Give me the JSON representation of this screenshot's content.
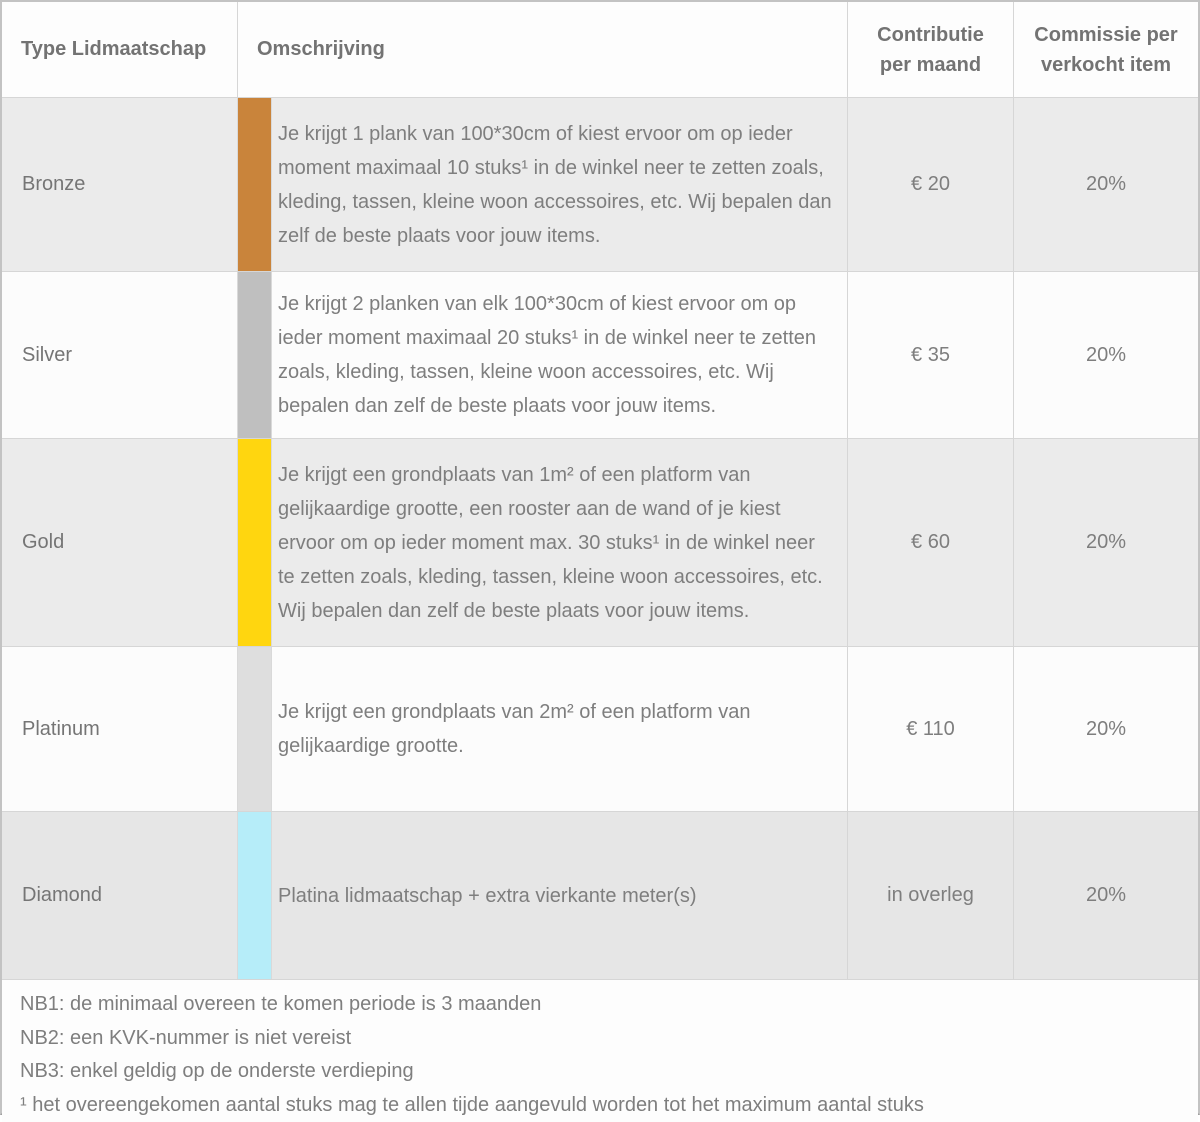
{
  "table": {
    "headers": {
      "type": "Type Lidmaatschap",
      "description": "Omschrijving",
      "contribution": "Contributie per maand",
      "commission": "Commissie per verkocht item"
    },
    "rows": [
      {
        "name": "Bronze",
        "tier_color": "#c9843b",
        "description": "Je krijgt 1 plank van 100*30cm of kiest ervoor om op ieder moment maximaal 10 stuks¹ in de winkel neer te zetten zoals, kleding, tassen, kleine woon accessoires, etc. Wij bepalen dan zelf de beste plaats voor jouw items.",
        "contribution": "€ 20",
        "commission": "20%"
      },
      {
        "name": "Silver",
        "tier_color": "#bfbfbf",
        "description": "Je krijgt 2 planken van elk 100*30cm of kiest ervoor om op ieder moment maximaal 20 stuks¹ in de winkel neer te zetten zoals, kleding, tassen, kleine woon accessoires, etc. Wij bepalen dan zelf de beste plaats voor jouw items.",
        "contribution": "€ 35",
        "commission": "20%"
      },
      {
        "name": "Gold",
        "tier_color": "#ffd60f",
        "description": "Je krijgt een grondplaats van 1m² of een platform van gelijkaardige grootte, een rooster aan de wand of je kiest ervoor om op ieder moment max. 30 stuks¹ in de winkel neer te zetten zoals, kleding, tassen, kleine woon accessoires, etc. Wij bepalen dan zelf de beste plaats voor jouw items.",
        "contribution": "€ 60",
        "commission": "20%"
      },
      {
        "name": "Platinum",
        "tier_color": "#dedede",
        "description": "Je krijgt een grondplaats van 2m² of een platform van gelijkaardige grootte.",
        "contribution": "€ 110",
        "commission": "20%"
      },
      {
        "name": "Diamond",
        "tier_color": "#b6edf9",
        "description": "Platina lidmaatschap + extra vierkante meter(s)",
        "contribution": "in overleg",
        "commission": "20%"
      }
    ],
    "notes": [
      "NB1: de minimaal overeen te komen periode is 3 maanden",
      "NB2: een KVK-nummer is niet vereist",
      "NB3: enkel geldig op de onderste verdieping",
      "¹ het overeengekomen aantal stuks mag te allen tijde aangevuld worden tot het maximum aantal stuks"
    ]
  }
}
